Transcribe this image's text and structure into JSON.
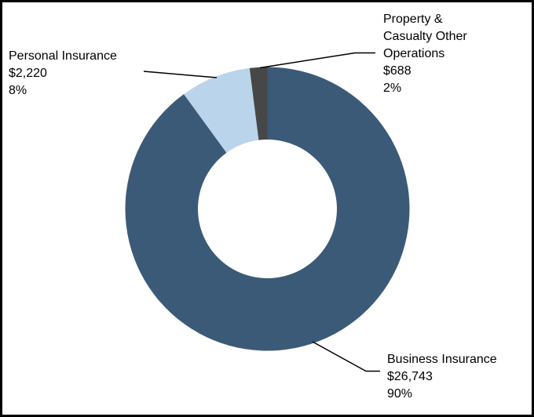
{
  "figure": {
    "background_color": "#FFFFFF",
    "border_color": "#000000"
  },
  "chart_data": {
    "type": "pie",
    "subtype": "donut",
    "direction": "clockwise",
    "start_angle_clockwise_from_top_deg": 0,
    "legend": "none",
    "leader_line_color": "#000000",
    "segments": [
      {
        "name": "Business Insurance",
        "value": 26743,
        "value_label": "$26,743",
        "percent": 90,
        "percent_label": "90%",
        "color": "#3B5A77",
        "label_lines": [
          "Business Insurance",
          "$26,743",
          "90%"
        ]
      },
      {
        "name": "Personal Insurance",
        "value": 2220,
        "value_label": "$2,220",
        "percent": 8,
        "percent_label": "8%",
        "color": "#BAD4EB",
        "label_lines": [
          "Personal Insurance",
          "$2,220",
          "8%"
        ]
      },
      {
        "name": "Property & Casualty Other Operations",
        "value": 688,
        "value_label": "$688",
        "percent": 2,
        "percent_label": "2%",
        "color": "#474747",
        "label_lines": [
          "Property &",
          "Casualty Other",
          "Operations",
          "$688",
          "2%"
        ]
      }
    ]
  }
}
